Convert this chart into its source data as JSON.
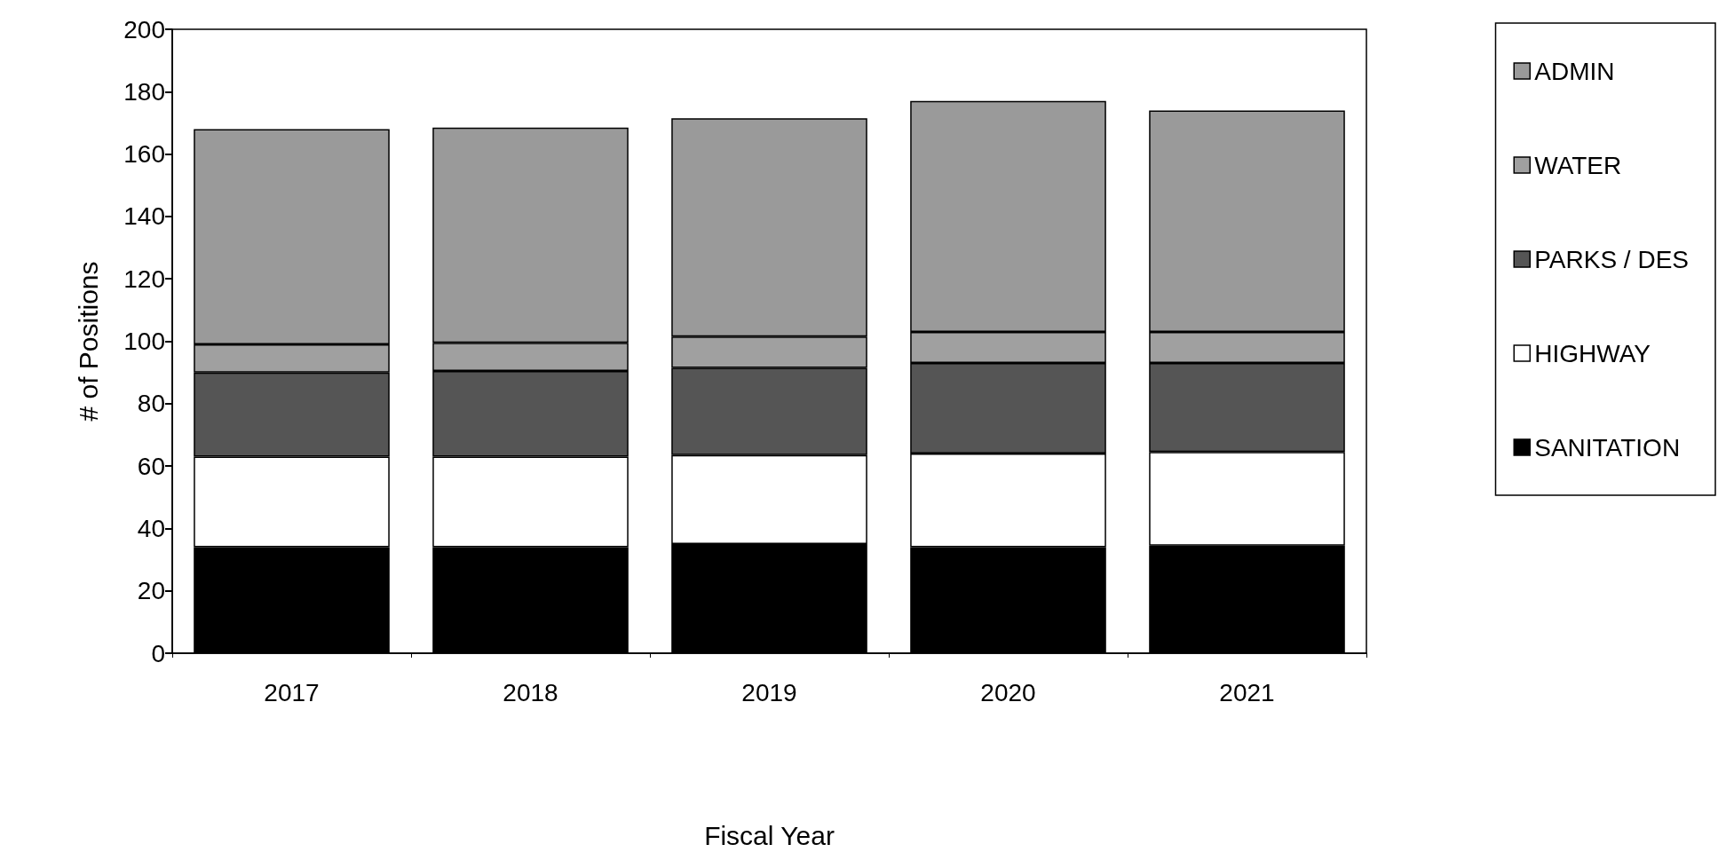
{
  "chart_data": {
    "type": "bar",
    "stacked": true,
    "xlabel": "Fiscal Year",
    "ylabel": "# of Positions",
    "categories": [
      "2017",
      "2018",
      "2019",
      "2020",
      "2021"
    ],
    "ylim": [
      0,
      200
    ],
    "yticks": [
      0,
      20,
      40,
      60,
      80,
      100,
      120,
      140,
      160,
      180,
      200
    ],
    "grid": false,
    "legend": "right",
    "series": [
      {
        "name": "SANITATION",
        "color": "#000000",
        "values": [
          34,
          34,
          35,
          34,
          34.5
        ]
      },
      {
        "name": "HIGHWAY",
        "color": "#ffffff",
        "values": [
          29,
          29,
          28.5,
          30,
          30
        ]
      },
      {
        "name": "PARKS / DES",
        "color": "#555555",
        "values": [
          27,
          27.5,
          28,
          29,
          28.5
        ]
      },
      {
        "name": "WATER",
        "color": "#a0a0a0",
        "values": [
          9,
          9,
          10,
          10,
          10
        ]
      },
      {
        "name": "ADMIN",
        "color": "#9a9a9a",
        "values": [
          69,
          69,
          70,
          74,
          71
        ]
      }
    ]
  }
}
